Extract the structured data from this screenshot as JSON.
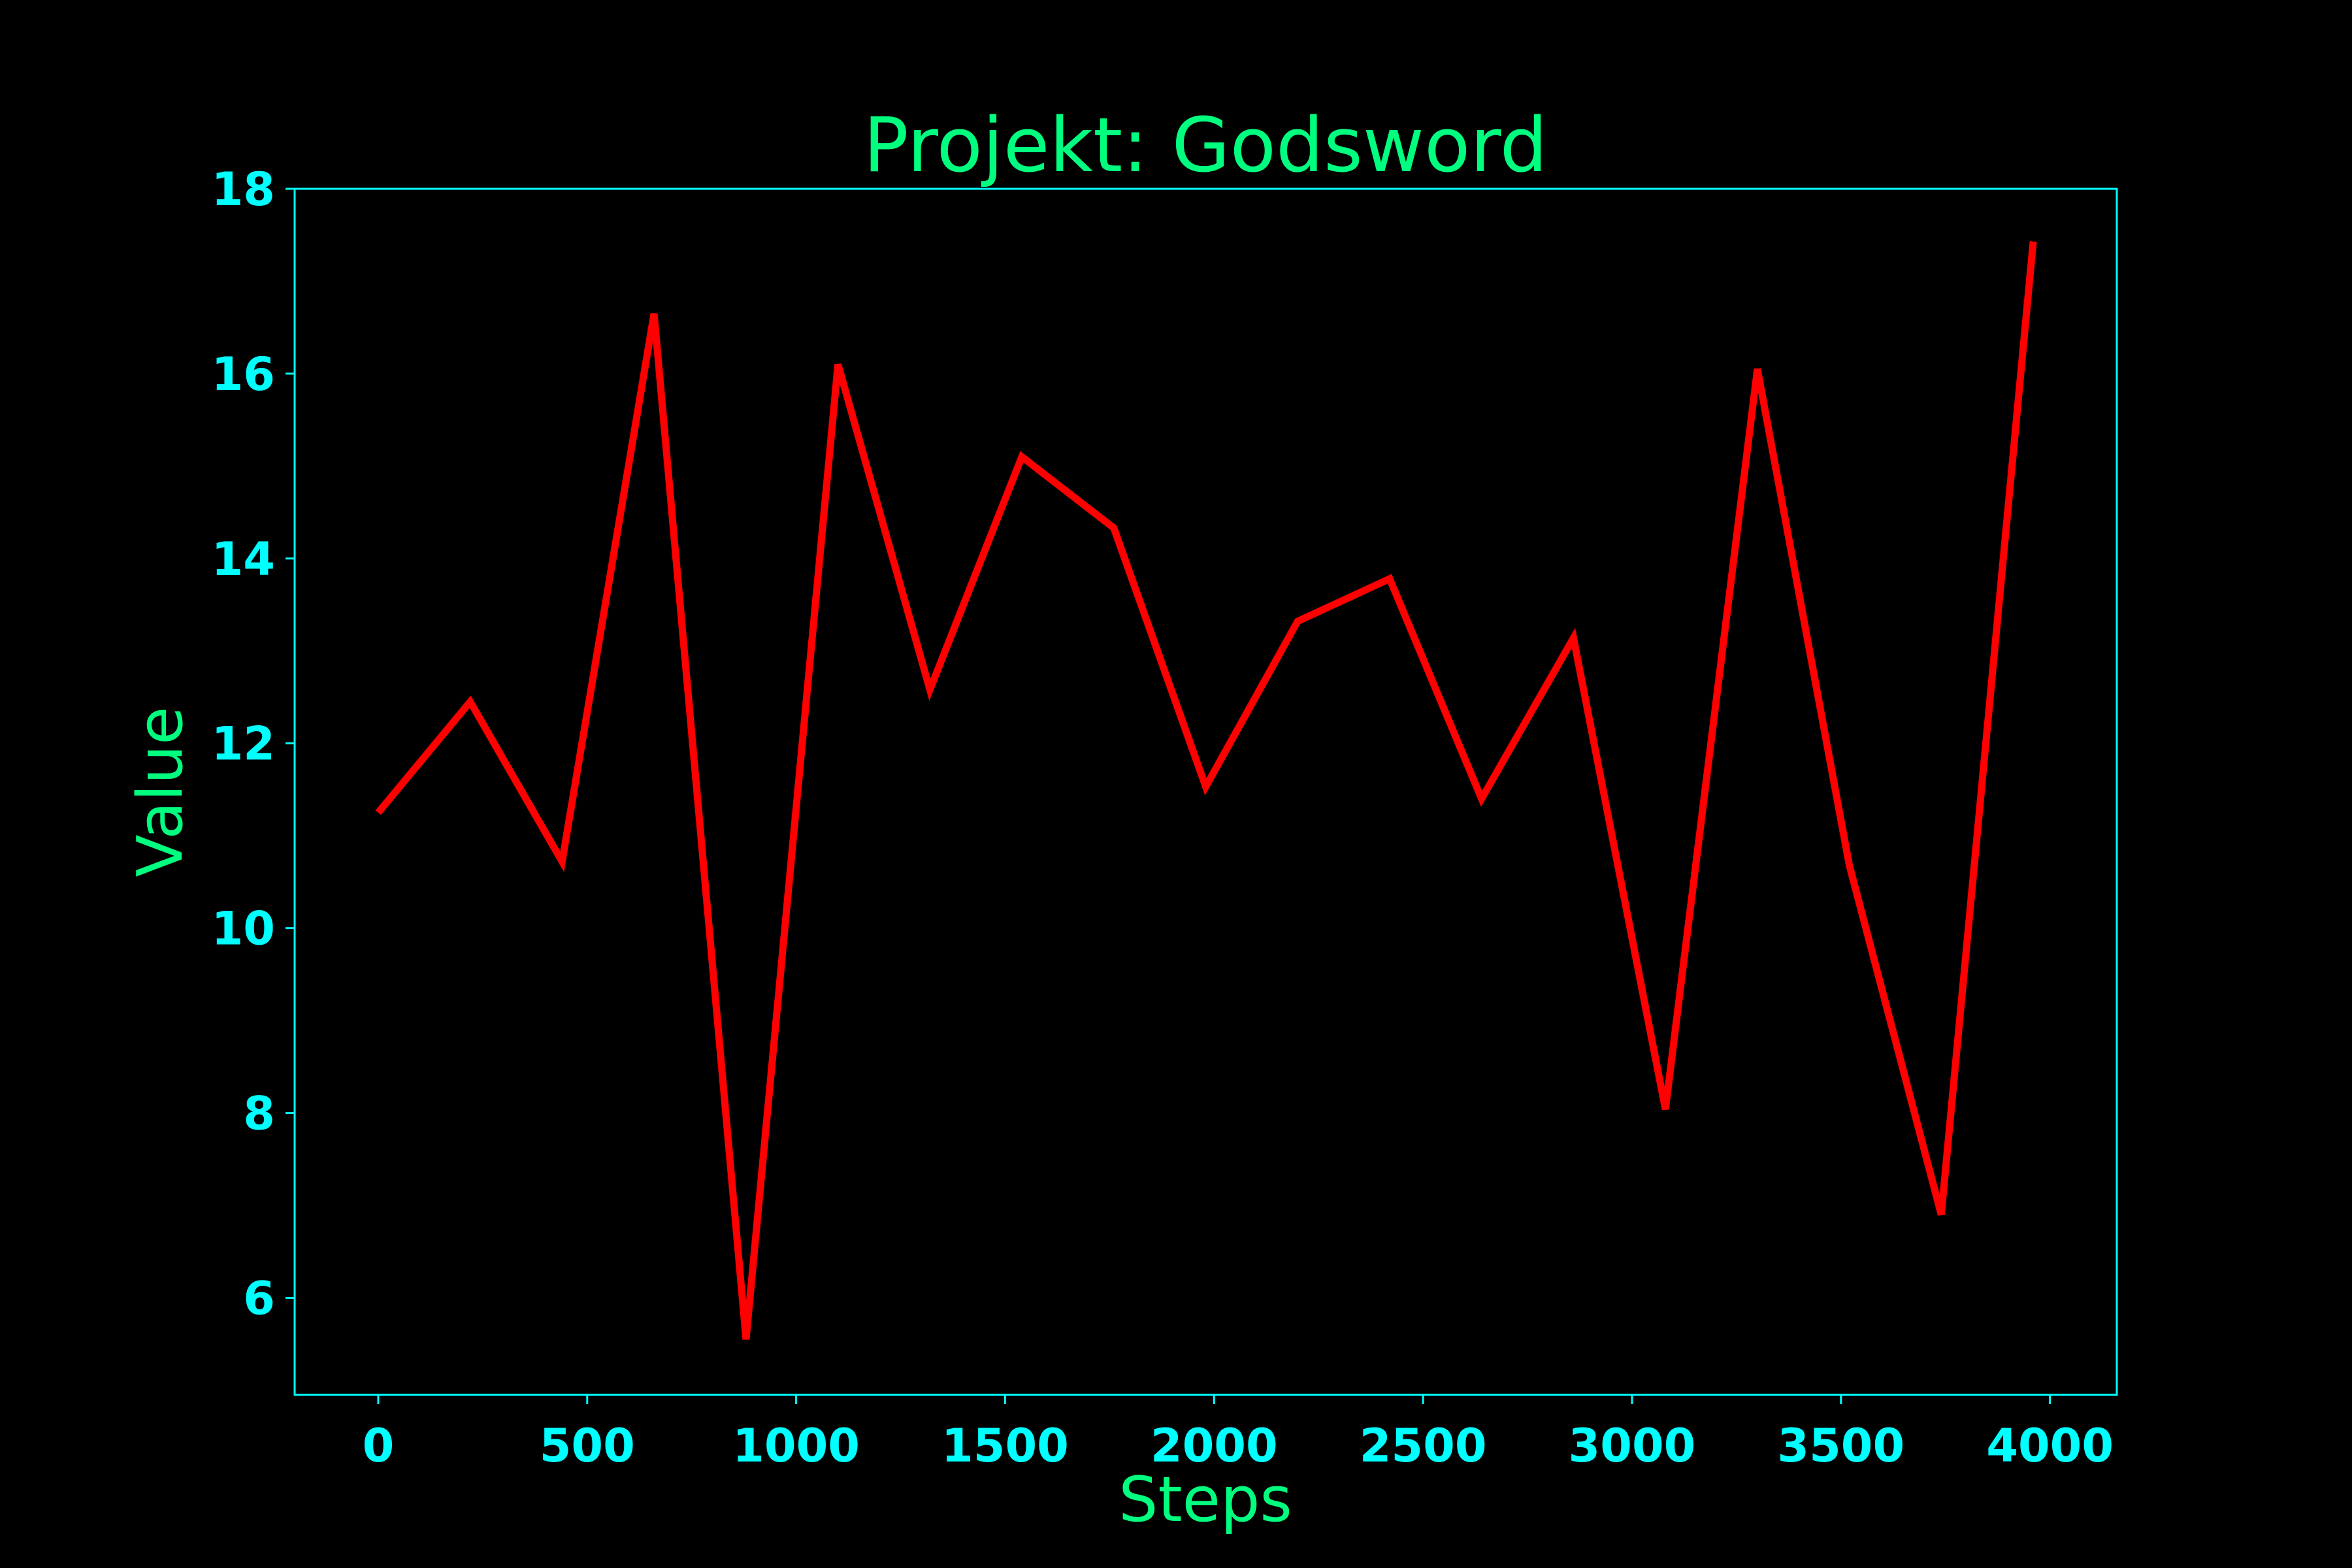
{
  "colors": {
    "background": "#000000",
    "title": "#00ff7f",
    "axis_label": "#00ff7f",
    "ticks": "#00ffff",
    "frame": "#00ffff",
    "line": "#ff0000"
  },
  "chart_data": {
    "type": "line",
    "title": "Projekt: Godsword",
    "xlabel": "Steps",
    "ylabel": "Value",
    "xlim": [
      -200,
      4160
    ],
    "ylim": [
      4.95,
      18
    ],
    "xticks": [
      0,
      500,
      1000,
      1500,
      2000,
      2500,
      3000,
      3500,
      4000
    ],
    "yticks": [
      6,
      8,
      10,
      12,
      14,
      16,
      18
    ],
    "grid": false,
    "legend": false,
    "series": [
      {
        "x": [
          0,
          220,
          440,
          660,
          880,
          1100,
          1320,
          1540,
          1760,
          1980,
          2200,
          2420,
          2640,
          2860,
          3080,
          3300,
          3520,
          3740,
          3960
        ],
        "y": [
          11.25,
          12.45,
          10.72,
          16.65,
          5.55,
          16.1,
          12.58,
          15.1,
          14.33,
          11.53,
          13.32,
          13.78,
          11.4,
          13.14,
          8.04,
          16.05,
          10.68,
          6.9,
          17.43
        ]
      }
    ]
  }
}
